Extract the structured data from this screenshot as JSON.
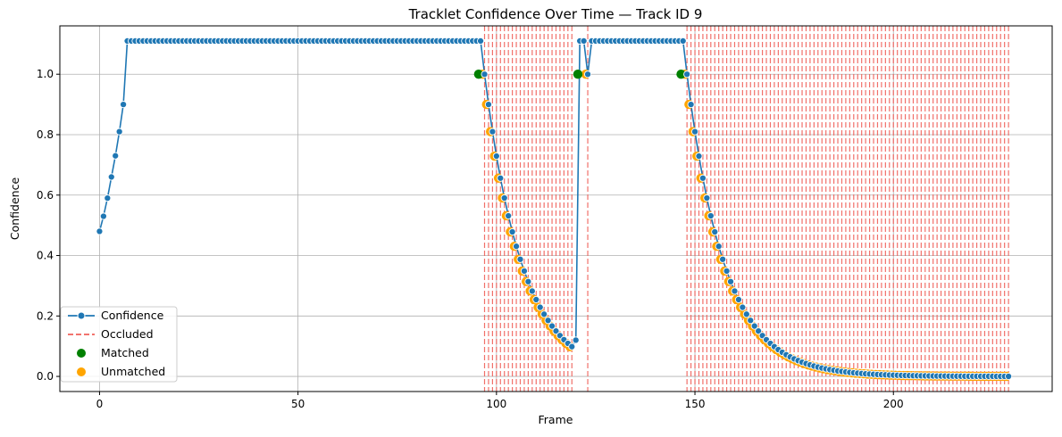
{
  "chart_data": {
    "type": "line",
    "title": "Tracklet Confidence Over Time — Track ID 9",
    "xlabel": "Frame",
    "ylabel": "Confidence",
    "xlim": [
      -10,
      240
    ],
    "ylim": [
      -0.05,
      1.16
    ],
    "xticks": [
      0,
      50,
      100,
      150,
      200
    ],
    "yticks": [
      0.0,
      0.2,
      0.4,
      0.6,
      0.8,
      1.0
    ],
    "grid": true,
    "legend_position": "lower-left",
    "legend": [
      "Confidence",
      "Occluded",
      "Matched",
      "Unmatched"
    ],
    "colors": {
      "confidence": "#1f77b4",
      "occluded": "#f0605a",
      "matched": "#008000",
      "unmatched": "#ffa500",
      "grid": "#b0b0b0"
    },
    "segments": [
      {
        "frames": [
          0,
          7
        ],
        "values": [
          0.48,
          0.53,
          0.59,
          0.66,
          0.73,
          0.81,
          0.9,
          1.11
        ]
      },
      {
        "frames": [
          8,
          96
        ],
        "constant": 1.11
      },
      {
        "frames": [
          97,
          119
        ],
        "start": 1.0,
        "decay": 0.9
      },
      {
        "frames": [
          120,
          120
        ],
        "constant": 0.12
      },
      {
        "frames": [
          121,
          122
        ],
        "constant": 1.11
      },
      {
        "frames": [
          123,
          123
        ],
        "constant": 1.0
      },
      {
        "frames": [
          124,
          147
        ],
        "constant": 1.11
      },
      {
        "frames": [
          148,
          229
        ],
        "start": 1.0,
        "decay": 0.9
      }
    ],
    "occluded_ranges": [
      [
        97,
        119
      ],
      [
        123,
        123
      ],
      [
        148,
        229
      ]
    ],
    "matched_frames": [
      96,
      121,
      147
    ],
    "unmatched_ranges": [
      [
        97,
        119
      ],
      [
        123,
        123
      ],
      [
        148,
        229
      ]
    ]
  }
}
